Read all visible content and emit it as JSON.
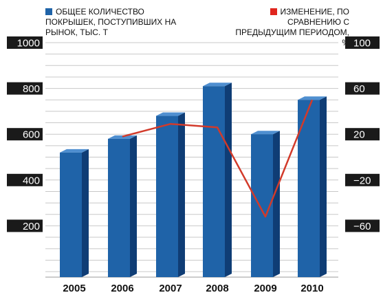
{
  "chart_data": {
    "type": "bar",
    "title": "",
    "categories": [
      "2005",
      "2006",
      "2007",
      "2008",
      "2009",
      "2010"
    ],
    "series": [
      {
        "name": "ОБЩЕЕ КОЛИЧЕСТВО ПОКРЫШЕК, ПОСТУПИВШИХ НА РЫНОК, ТЫС. Т",
        "type": "bar",
        "axis": "left",
        "values": [
          520,
          580,
          680,
          810,
          600,
          750
        ]
      },
      {
        "name": "ИЗМЕНЕНИЕ, ПО СРАВНЕНИЮ С ПРЕДЫДУЩИМ ПЕРИОДОМ, %",
        "type": "line",
        "axis": "right",
        "values": [
          null,
          18,
          29,
          26,
          -52,
          50
        ]
      }
    ],
    "left_axis": {
      "ylim": [
        0,
        1000
      ],
      "ticks": [
        "1000",
        "800",
        "600",
        "400",
        "200"
      ]
    },
    "right_axis": {
      "ylim": [
        -100,
        100
      ],
      "ticks": [
        "100",
        "60",
        "20",
        "−20",
        "−60"
      ]
    },
    "grid": true,
    "legend_position": "top",
    "colors": {
      "bar": "#1f63a8",
      "bar_side": "#0f3d75",
      "bar_top": "#4f8fd0",
      "line": "#d23a2a",
      "tick_bg": "#1a1a1a",
      "grid": "#c8c8c8"
    }
  },
  "legend": {
    "left_label": "ОБЩЕЕ КОЛИЧЕСТВО ПОКРЫШЕК, ПОСТУПИВШИХ НА РЫНОК, ТЫС. Т",
    "right_label": "ИЗМЕНЕНИЕ, ПО СРАВНЕНИЮ С ПРЕДЫДУЩИМ ПЕРИОДОМ, %",
    "left_color": "#1f63a8",
    "right_color": "#e0261e"
  }
}
